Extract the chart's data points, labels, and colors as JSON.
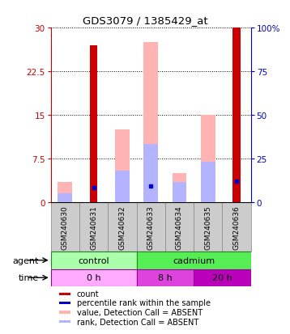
{
  "title": "GDS3079 / 1385429_at",
  "samples": [
    "GSM240630",
    "GSM240631",
    "GSM240632",
    "GSM240633",
    "GSM240634",
    "GSM240635",
    "GSM240636"
  ],
  "count_values": [
    0,
    27,
    0,
    0,
    0,
    0,
    30
  ],
  "rank_values": [
    0,
    8.5,
    0,
    9.5,
    0,
    0,
    12
  ],
  "value_absent": [
    3.5,
    0,
    12.5,
    27.5,
    5.0,
    15.0,
    0
  ],
  "rank_absent": [
    1.5,
    0,
    5.5,
    10.0,
    3.5,
    7.0,
    0
  ],
  "ylim_left": [
    0,
    30
  ],
  "ylim_right": [
    0,
    100
  ],
  "yticks_left": [
    0,
    7.5,
    15,
    22.5,
    30
  ],
  "yticks_right": [
    0,
    25,
    50,
    75,
    100
  ],
  "ytick_labels_left": [
    "0",
    "7.5",
    "15",
    "22.5",
    "30"
  ],
  "ytick_labels_right": [
    "0",
    "25",
    "50",
    "75",
    "100%"
  ],
  "color_count": "#cc0000",
  "color_rank": "#0000cc",
  "color_value_absent": "#ffb3b3",
  "color_rank_absent": "#b3b3ff",
  "agent_groups": [
    {
      "label": "control",
      "start": 0,
      "end": 3,
      "color": "#aaffaa"
    },
    {
      "label": "cadmium",
      "start": 3,
      "end": 7,
      "color": "#55ee55"
    }
  ],
  "time_groups": [
    {
      "label": "0 h",
      "start": 0,
      "end": 3,
      "color": "#ffaaff"
    },
    {
      "label": "8 h",
      "start": 3,
      "end": 5,
      "color": "#dd44dd"
    },
    {
      "label": "20 h",
      "start": 5,
      "end": 7,
      "color": "#bb00bb"
    }
  ],
  "legend_items": [
    {
      "label": "count",
      "color": "#cc0000"
    },
    {
      "label": "percentile rank within the sample",
      "color": "#0000cc"
    },
    {
      "label": "value, Detection Call = ABSENT",
      "color": "#ffb3b3"
    },
    {
      "label": "rank, Detection Call = ABSENT",
      "color": "#b3b3ff"
    }
  ],
  "bar_width": 0.5,
  "background_color": "#ffffff",
  "label_color_left": "#cc0000",
  "label_color_right": "#0000cc"
}
